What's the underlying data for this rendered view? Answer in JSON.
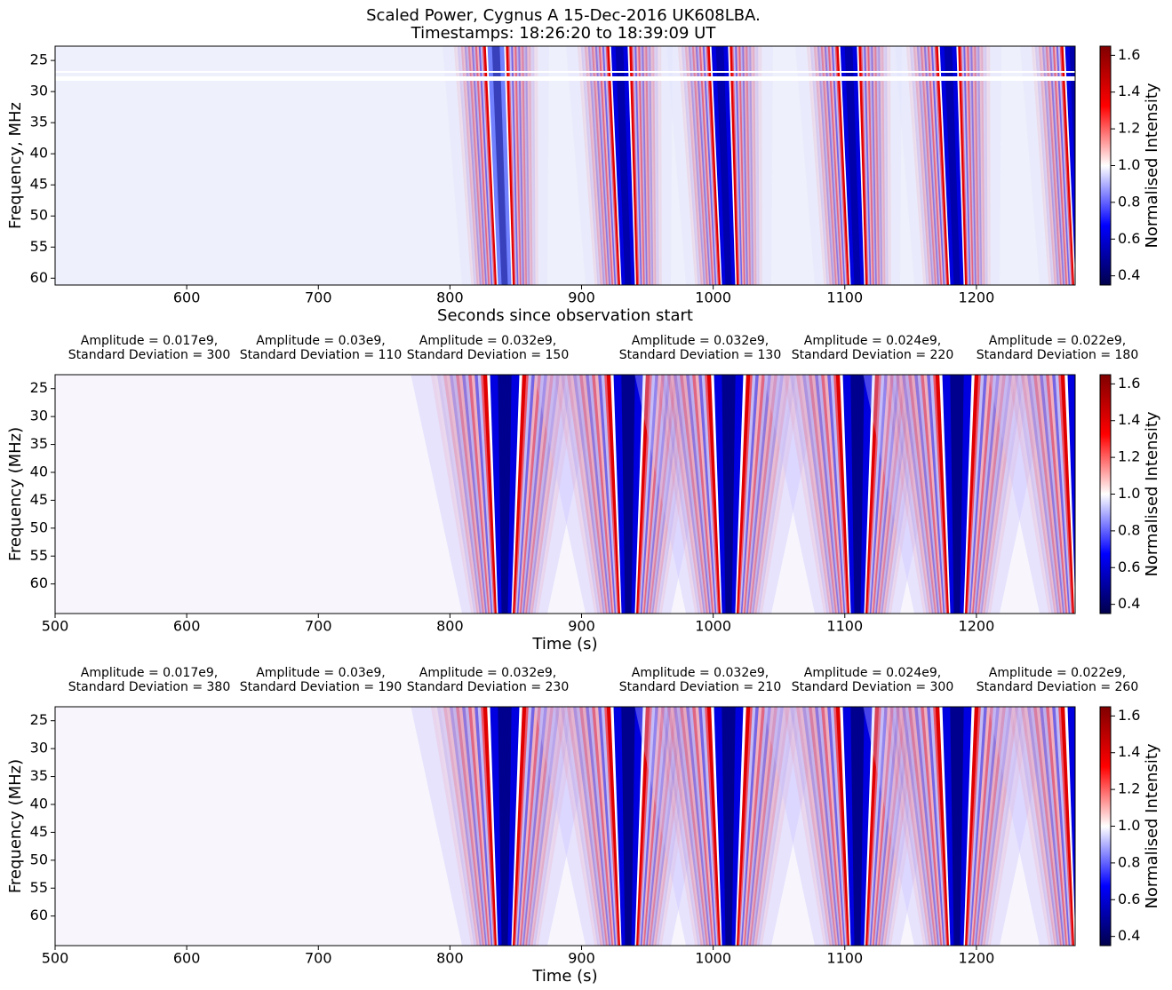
{
  "chart_data": [
    {
      "type": "heatmap",
      "title": "Scaled Power, Cygnus A 15-Dec-2016 UK608LBA.",
      "subtitle": "Timestamps: 18:26:20 to 18:39:09 UT",
      "xlabel": "Seconds since observation start",
      "ylabel": "Frequency, MHz",
      "xlim": [
        500,
        1275
      ],
      "xticks": [
        600,
        700,
        800,
        900,
        1000,
        1100,
        1200
      ],
      "ylim": [
        22.7,
        61.1
      ],
      "yticks": [
        25,
        30,
        35,
        40,
        45,
        50,
        55,
        60
      ],
      "colorbar": {
        "label": "Normalised Intensity",
        "lim": [
          0.35,
          1.65
        ],
        "ticks": [
          0.4,
          0.6,
          0.8,
          {
            "value": 1,
            "label": "1.0"
          },
          1.2,
          1.4,
          1.6
        ]
      }
    },
    {
      "type": "heatmap",
      "xlabel": "Time (s)",
      "ylabel": "Frequency (MHz)",
      "xlim": [
        500,
        1275
      ],
      "xticks": [
        500,
        600,
        700,
        800,
        900,
        1000,
        1100,
        1200
      ],
      "ylim": [
        22.5,
        65.3
      ],
      "yticks": [
        25,
        30,
        35,
        40,
        45,
        50,
        55,
        60
      ],
      "annotations": [
        [
          "Amplitude = 0.017e9,",
          "Standard Deviation = 300"
        ],
        [
          "Amplitude = 0.03e9,",
          "Standard Deviation = 110"
        ],
        [
          "Amplitude = 0.032e9,",
          "Standard Deviation = 150"
        ],
        [
          "Amplitude = 0.032e9,",
          "Standard Deviation = 130"
        ],
        [
          "Amplitude = 0.024e9,",
          "Standard Deviation = 220"
        ],
        [
          "Amplitude = 0.022e9,",
          "Standard Deviation = 180"
        ]
      ],
      "colorbar": {
        "label": "Normalised Intensity",
        "lim": [
          0.35,
          1.65
        ],
        "ticks": [
          0.4,
          0.6,
          0.8,
          {
            "value": 1,
            "label": "1.0"
          },
          1.2,
          1.4,
          1.6
        ]
      }
    },
    {
      "type": "heatmap",
      "xlabel": "Time (s)",
      "ylabel": "Frequency (MHz)",
      "xlim": [
        500,
        1275
      ],
      "xticks": [
        500,
        600,
        700,
        800,
        900,
        1000,
        1100,
        1200
      ],
      "ylim": [
        22.5,
        65.3
      ],
      "yticks": [
        25,
        30,
        35,
        40,
        45,
        50,
        55,
        60
      ],
      "annotations": [
        [
          "Amplitude = 0.017e9,",
          "Standard Deviation = 380"
        ],
        [
          "Amplitude = 0.03e9,",
          "Standard Deviation = 190"
        ],
        [
          "Amplitude = 0.032e9,",
          "Standard Deviation = 230"
        ],
        [
          "Amplitude = 0.032e9,",
          "Standard Deviation = 210"
        ],
        [
          "Amplitude = 0.024e9,",
          "Standard Deviation = 300"
        ],
        [
          "Amplitude = 0.022e9,",
          "Standard Deviation = 260"
        ]
      ],
      "colorbar": {
        "label": "Normalised Intensity",
        "lim": [
          0.35,
          1.65
        ],
        "ticks": [
          0.4,
          0.6,
          0.8,
          {
            "value": 1,
            "label": "1.0"
          },
          1.2,
          1.4,
          1.6
        ]
      }
    }
  ]
}
